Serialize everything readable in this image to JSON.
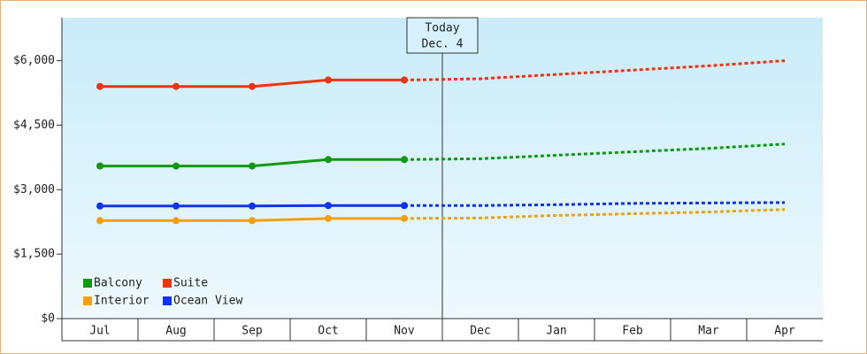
{
  "chart_data": {
    "type": "line",
    "categories": [
      "Jul",
      "Aug",
      "Sep",
      "Oct",
      "Nov",
      "Dec",
      "Jan",
      "Feb",
      "Mar",
      "Apr"
    ],
    "series": [
      {
        "name": "Balcony",
        "color": "#119911",
        "values": [
          3550,
          3550,
          3550,
          3700,
          3700,
          3720,
          3800,
          3880,
          3960,
          4060
        ]
      },
      {
        "name": "Suite",
        "color": "#ee3311",
        "values": [
          5400,
          5400,
          5400,
          5550,
          5550,
          5580,
          5680,
          5780,
          5880,
          6000
        ]
      },
      {
        "name": "Interior",
        "color": "#f0a010",
        "values": [
          2280,
          2280,
          2280,
          2330,
          2330,
          2340,
          2400,
          2440,
          2480,
          2540
        ]
      },
      {
        "name": "Ocean View",
        "color": "#1133ee",
        "values": [
          2620,
          2620,
          2620,
          2630,
          2630,
          2630,
          2650,
          2680,
          2690,
          2700
        ]
      }
    ],
    "ylim": [
      0,
      7000
    ],
    "yticks": [
      {
        "value": 0,
        "label": "$0"
      },
      {
        "value": 1500,
        "label": "$1,500"
      },
      {
        "value": 3000,
        "label": "$3,000"
      },
      {
        "value": 4500,
        "label": "$4,500"
      },
      {
        "value": 6000,
        "label": "$6,000"
      }
    ],
    "annotation": [
      "Today",
      "Dec. 4"
    ],
    "legend": "bottom-left"
  }
}
